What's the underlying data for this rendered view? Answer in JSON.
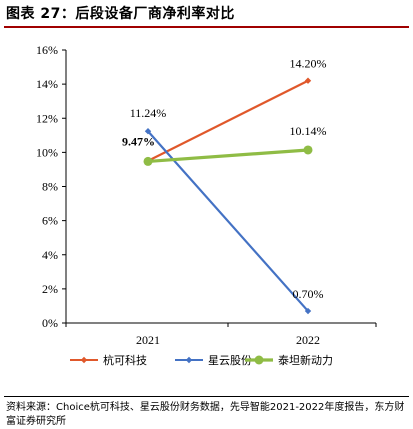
{
  "header": {
    "title": "图表 27：后段设备厂商净利率对比"
  },
  "chart_data": {
    "type": "line",
    "categories": [
      "2021",
      "2022"
    ],
    "ylim": [
      0,
      16
    ],
    "y_ticks": [
      "0%",
      "2%",
      "4%",
      "6%",
      "8%",
      "10%",
      "12%",
      "14%",
      "16%"
    ],
    "y_tick_values": [
      0,
      2,
      4,
      6,
      8,
      10,
      12,
      14,
      16
    ],
    "grid": false,
    "legend_position": "bottom",
    "series": [
      {
        "name": "杭可科技",
        "values": [
          9.5,
          14.2
        ],
        "color": "#E0582B",
        "marker": "diamond",
        "labels": [
          "",
          "14.20%"
        ],
        "label_bold": [
          false,
          false
        ]
      },
      {
        "name": "星云股份",
        "values": [
          11.24,
          0.7
        ],
        "color": "#4472C4",
        "marker": "diamond",
        "labels": [
          "11.24%",
          "0.70%"
        ],
        "label_bold": [
          false,
          false
        ]
      },
      {
        "name": "泰坦新动力",
        "values": [
          9.47,
          10.14
        ],
        "color": "#8FBC45",
        "marker": "circle",
        "labels": [
          "9.47%",
          "10.14%"
        ],
        "label_bold": [
          true,
          false
        ]
      }
    ]
  },
  "footer": {
    "source": "资料来源：Choice杭可科技、星云股份财务数据，先导智能2021-2022年度报告，东方财富证券研究所"
  }
}
